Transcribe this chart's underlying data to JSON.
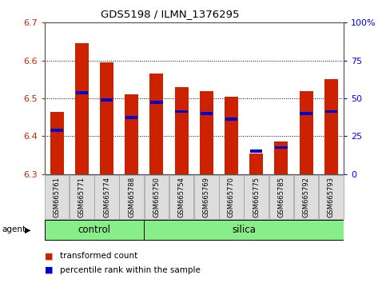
{
  "title": "GDS5198 / ILMN_1376295",
  "samples": [
    "GSM665761",
    "GSM665771",
    "GSM665774",
    "GSM665788",
    "GSM665750",
    "GSM665754",
    "GSM665769",
    "GSM665770",
    "GSM665775",
    "GSM665785",
    "GSM665792",
    "GSM665793"
  ],
  "groups": [
    "control",
    "control",
    "control",
    "control",
    "silica",
    "silica",
    "silica",
    "silica",
    "silica",
    "silica",
    "silica",
    "silica"
  ],
  "transformed_count": [
    6.465,
    6.645,
    6.595,
    6.51,
    6.565,
    6.53,
    6.52,
    6.505,
    6.355,
    6.385,
    6.52,
    6.55
  ],
  "percentile_rank": [
    6.415,
    6.515,
    6.495,
    6.45,
    6.49,
    6.465,
    6.46,
    6.445,
    6.36,
    6.37,
    6.46,
    6.465
  ],
  "ymin": 6.3,
  "ymax": 6.7,
  "yticks": [
    6.3,
    6.4,
    6.5,
    6.6,
    6.7
  ],
  "bar_color": "#cc2200",
  "pct_color": "#0000cc",
  "control_color": "#88ee88",
  "silica_color": "#88ee88",
  "bg_color": "#ffffff",
  "bar_width": 0.55,
  "base_value": 6.3,
  "n_control": 4,
  "n_silica": 8
}
